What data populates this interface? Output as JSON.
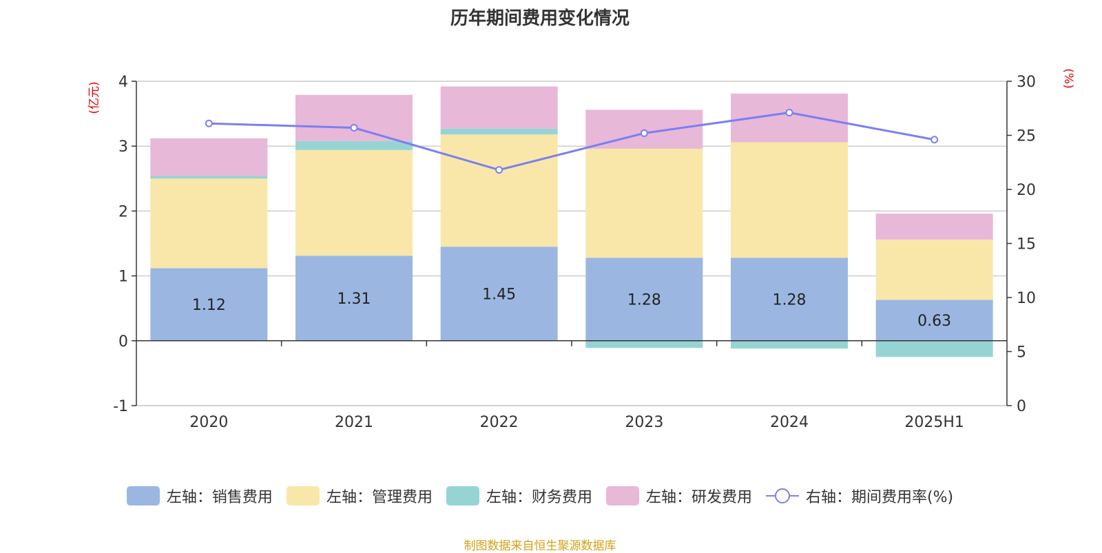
{
  "title": "历年期间费用变化情况",
  "source_note": "制图数据来自恒生聚源数据库",
  "colors": {
    "sales": "#9bb7e1",
    "admin": "#f8e7a9",
    "finance": "#96d4d4",
    "rnd": "#e8b8d8",
    "rate": "#7b7ff0"
  },
  "chart_data": {
    "type": "bar",
    "title": "历年期间费用变化情况",
    "categories": [
      "2020",
      "2021",
      "2022",
      "2023",
      "2024",
      "2025H1"
    ],
    "left_axis": {
      "unit_label": "(亿元)",
      "ylim": [
        -1,
        4
      ],
      "ticks": [
        "-1",
        "0",
        "1",
        "2",
        "3",
        "4"
      ]
    },
    "right_axis": {
      "unit_label": "(%)",
      "ylim": [
        0,
        30
      ],
      "ticks": [
        "0",
        "5",
        "10",
        "15",
        "20",
        "25",
        "30"
      ]
    },
    "stacked": true,
    "series": [
      {
        "name": "左轴：销售费用",
        "key": "sales",
        "axis": "left",
        "type": "bar",
        "values": [
          1.12,
          1.31,
          1.45,
          1.28,
          1.28,
          0.63
        ],
        "labels": [
          "1.12",
          "1.31",
          "1.45",
          "1.28",
          "1.28",
          "0.63"
        ]
      },
      {
        "name": "左轴：管理费用",
        "key": "admin",
        "axis": "left",
        "type": "bar",
        "values": [
          1.38,
          1.63,
          1.73,
          1.68,
          1.78,
          0.93
        ]
      },
      {
        "name": "左轴：财务费用",
        "key": "finance",
        "axis": "left",
        "type": "bar",
        "values": [
          0.04,
          0.14,
          0.09,
          -0.11,
          -0.12,
          -0.25
        ]
      },
      {
        "name": "左轴：研发费用",
        "key": "rnd",
        "axis": "left",
        "type": "bar",
        "values": [
          0.58,
          0.71,
          0.65,
          0.6,
          0.75,
          0.4
        ]
      },
      {
        "name": "右轴：期间费用率(%)",
        "key": "rate",
        "axis": "right",
        "type": "line",
        "values": [
          26.1,
          25.7,
          21.8,
          25.2,
          27.1,
          24.6
        ]
      }
    ],
    "grid": true,
    "legend_position": "bottom"
  }
}
